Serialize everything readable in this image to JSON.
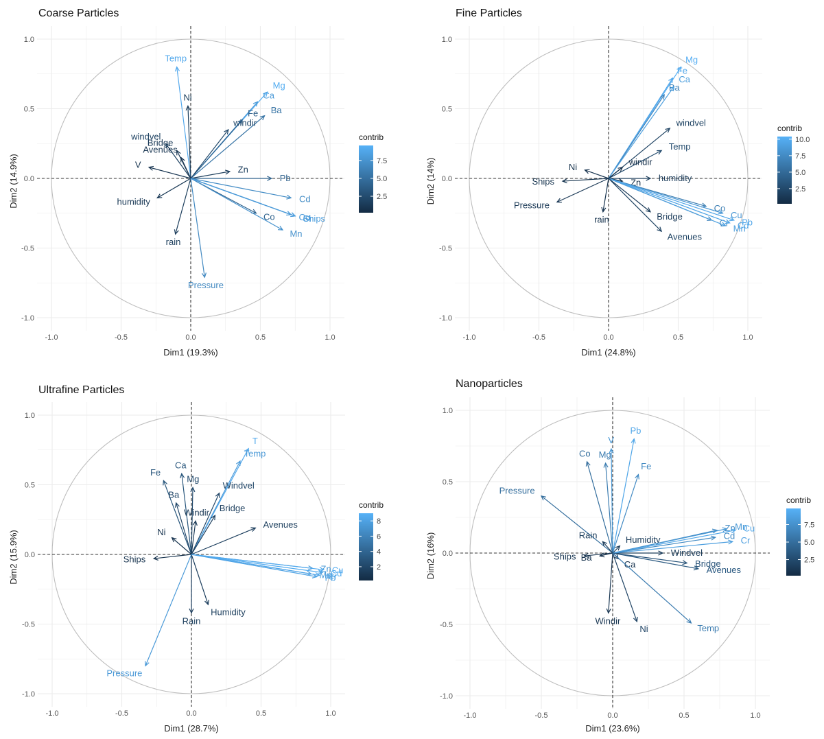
{
  "chart_data": [
    {
      "type": "pca_variable_correlation_circle",
      "title": "Coarse Particles",
      "xlabel": "Dim1 (19.3%)",
      "ylabel": "Dim2 (14.9%)",
      "xlim": [
        -1.0,
        1.0
      ],
      "ylim": [
        -1.0,
        1.0
      ],
      "x_ticks": [
        "-1.0",
        "-0.5",
        "0.0",
        "0.5",
        "1.0"
      ],
      "y_ticks": [
        "-1.0",
        "-0.5",
        "0.0",
        "0.5",
        "1.0"
      ],
      "legend": {
        "title": "contrib",
        "ticks": [
          "2.5",
          "5.0",
          "7.5"
        ],
        "min": 0.2,
        "max": 9.6
      },
      "variables": [
        {
          "name": "Temp",
          "x": -0.1,
          "y": 0.8,
          "contrib": 9.0
        },
        {
          "name": "Ni",
          "x": -0.02,
          "y": 0.52,
          "contrib": 1.5
        },
        {
          "name": "Mg",
          "x": 0.55,
          "y": 0.62,
          "contrib": 9.3
        },
        {
          "name": "Ca",
          "x": 0.48,
          "y": 0.55,
          "contrib": 8.0
        },
        {
          "name": "Fe",
          "x": 0.37,
          "y": 0.42,
          "contrib": 3.8
        },
        {
          "name": "Ba",
          "x": 0.53,
          "y": 0.45,
          "contrib": 5.3
        },
        {
          "name": "windir",
          "x": 0.27,
          "y": 0.35,
          "contrib": 2.3
        },
        {
          "name": "windvel",
          "x": -0.18,
          "y": 0.25,
          "contrib": 1.8
        },
        {
          "name": "Bridge",
          "x": -0.1,
          "y": 0.2,
          "contrib": 1.2
        },
        {
          "name": "Avenues",
          "x": -0.07,
          "y": 0.15,
          "contrib": 1.0
        },
        {
          "name": "Zn",
          "x": 0.28,
          "y": 0.05,
          "contrib": 1.5
        },
        {
          "name": "Pb",
          "x": 0.58,
          "y": 0.0,
          "contrib": 4.0
        },
        {
          "name": "V",
          "x": -0.3,
          "y": 0.08,
          "contrib": 1.0
        },
        {
          "name": "Cd",
          "x": 0.72,
          "y": -0.14,
          "contrib": 7.0
        },
        {
          "name": "Ships",
          "x": 0.75,
          "y": -0.27,
          "contrib": 8.2
        },
        {
          "name": "humidity",
          "x": -0.24,
          "y": -0.14,
          "contrib": 1.2
        },
        {
          "name": "Co",
          "x": 0.47,
          "y": -0.25,
          "contrib": 4.0
        },
        {
          "name": "Cr",
          "x": 0.75,
          "y": -0.27,
          "contrib": 8.3
        },
        {
          "name": "Mn",
          "x": 0.66,
          "y": -0.37,
          "contrib": 7.4
        },
        {
          "name": "Cu",
          "x": 0.72,
          "y": -0.26,
          "contrib": 8.0
        },
        {
          "name": "rain",
          "x": -0.11,
          "y": -0.4,
          "contrib": 1.5
        },
        {
          "name": "Pressure",
          "x": 0.1,
          "y": -0.71,
          "contrib": 6.8
        }
      ]
    },
    {
      "type": "pca_variable_correlation_circle",
      "title": "Fine Particles",
      "xlabel": "Dim1 (24.8%)",
      "ylabel": "Dim2 (14%)",
      "xlim": [
        -1.0,
        1.0
      ],
      "ylim": [
        -1.0,
        1.0
      ],
      "x_ticks": [
        "-1.0",
        "-0.5",
        "0.0",
        "0.5",
        "1.0"
      ],
      "y_ticks": [
        "-1.0",
        "-0.5",
        "0.0",
        "0.5",
        "1.0"
      ],
      "legend": {
        "title": "contrib",
        "ticks": [
          "2.5",
          "5.0",
          "7.5",
          "10.0"
        ],
        "min": 0.2,
        "max": 10.4
      },
      "variables": [
        {
          "name": "Mg",
          "x": 0.52,
          "y": 0.8,
          "contrib": 10.2
        },
        {
          "name": "Fe",
          "x": 0.46,
          "y": 0.72,
          "contrib": 9.6
        },
        {
          "name": "Ba",
          "x": 0.4,
          "y": 0.6,
          "contrib": 7.0
        },
        {
          "name": "Ca",
          "x": 0.47,
          "y": 0.66,
          "contrib": 9.0
        },
        {
          "name": "windvel",
          "x": 0.44,
          "y": 0.36,
          "contrib": 2.0
        },
        {
          "name": "Temp",
          "x": 0.38,
          "y": 0.2,
          "contrib": 2.6
        },
        {
          "name": "Ni",
          "x": -0.17,
          "y": 0.06,
          "contrib": 0.8
        },
        {
          "name": "windir",
          "x": 0.1,
          "y": 0.08,
          "contrib": 0.6
        },
        {
          "name": "humidity",
          "x": 0.3,
          "y": 0.0,
          "contrib": 1.5
        },
        {
          "name": "Ships",
          "x": -0.33,
          "y": -0.02,
          "contrib": 1.0
        },
        {
          "name": "Zn",
          "x": 0.1,
          "y": -0.02,
          "contrib": 0.5
        },
        {
          "name": "Pressure",
          "x": -0.37,
          "y": -0.17,
          "contrib": 1.2
        },
        {
          "name": "Co",
          "x": 0.7,
          "y": -0.2,
          "contrib": 6.5
        },
        {
          "name": "Cu",
          "x": 0.82,
          "y": -0.25,
          "contrib": 8.5
        },
        {
          "name": "Pb",
          "x": 0.9,
          "y": -0.3,
          "contrib": 9.6
        },
        {
          "name": "Cr",
          "x": 0.74,
          "y": -0.3,
          "contrib": 7.0
        },
        {
          "name": "Mn",
          "x": 0.84,
          "y": -0.34,
          "contrib": 9.0
        },
        {
          "name": "Cd",
          "x": 0.87,
          "y": -0.32,
          "contrib": 9.4
        },
        {
          "name": "Bridge",
          "x": 0.3,
          "y": -0.24,
          "contrib": 1.5
        },
        {
          "name": "Avenues",
          "x": 0.38,
          "y": -0.38,
          "contrib": 2.0
        },
        {
          "name": "rain",
          "x": -0.04,
          "y": -0.24,
          "contrib": 0.8
        }
      ]
    },
    {
      "type": "pca_variable_correlation_circle",
      "title": "Ultrafine Particles",
      "xlabel": "Dim1 (28.7%)",
      "ylabel": "Dim2 (15.9%)",
      "xlim": [
        -1.0,
        1.0
      ],
      "ylim": [
        -1.0,
        1.0
      ],
      "x_ticks": [
        "-1.0",
        "-0.5",
        "0.0",
        "0.5",
        "1.0"
      ],
      "y_ticks": [
        "-1.0",
        "-0.5",
        "0.0",
        "0.5",
        "1.0"
      ],
      "legend": {
        "title": "contrib",
        "ticks": [
          "2",
          "4",
          "6",
          "8"
        ],
        "min": 0.2,
        "max": 9.0
      },
      "variables": [
        {
          "name": "T",
          "x": 0.41,
          "y": 0.76,
          "contrib": 8.5
        },
        {
          "name": "Temp",
          "x": 0.35,
          "y": 0.67,
          "contrib": 7.5
        },
        {
          "name": "Ca",
          "x": -0.07,
          "y": 0.58,
          "contrib": 3.0
        },
        {
          "name": "Fe",
          "x": -0.2,
          "y": 0.53,
          "contrib": 3.0
        },
        {
          "name": "Mg",
          "x": 0.01,
          "y": 0.48,
          "contrib": 2.2
        },
        {
          "name": "Windvel",
          "x": 0.2,
          "y": 0.44,
          "contrib": 2.0
        },
        {
          "name": "Ba",
          "x": -0.11,
          "y": 0.37,
          "contrib": 2.0
        },
        {
          "name": "Bridge",
          "x": 0.17,
          "y": 0.28,
          "contrib": 1.5
        },
        {
          "name": "Windir",
          "x": 0.03,
          "y": 0.24,
          "contrib": 1.2
        },
        {
          "name": "Avenues",
          "x": 0.46,
          "y": 0.19,
          "contrib": 1.5
        },
        {
          "name": "Ni",
          "x": -0.14,
          "y": 0.12,
          "contrib": 0.8
        },
        {
          "name": "Ships",
          "x": -0.27,
          "y": -0.03,
          "contrib": 0.8
        },
        {
          "name": "Zn",
          "x": 0.87,
          "y": -0.1,
          "contrib": 7.4
        },
        {
          "name": "Cu",
          "x": 0.95,
          "y": -0.11,
          "contrib": 8.6
        },
        {
          "name": "Cd",
          "x": 0.94,
          "y": -0.13,
          "contrib": 8.6
        },
        {
          "name": "Mn",
          "x": 0.86,
          "y": -0.14,
          "contrib": 7.5
        },
        {
          "name": "Pb",
          "x": 0.9,
          "y": -0.16,
          "contrib": 8.0
        },
        {
          "name": "Cr",
          "x": 0.92,
          "y": -0.15,
          "contrib": 8.3
        },
        {
          "name": "Humidity",
          "x": 0.12,
          "y": -0.36,
          "contrib": 1.5
        },
        {
          "name": "Rain",
          "x": 0.0,
          "y": -0.42,
          "contrib": 1.5
        },
        {
          "name": "Pressure",
          "x": -0.33,
          "y": -0.8,
          "contrib": 7.5
        }
      ]
    },
    {
      "type": "pca_variable_correlation_circle",
      "title": "Nanoparticles",
      "xlabel": "Dim1 (23.6%)",
      "ylabel": "Dim2 (16%)",
      "xlim": [
        -1.0,
        1.0
      ],
      "ylim": [
        -1.0,
        1.0
      ],
      "x_ticks": [
        "-1.0",
        "-0.5",
        "0.0",
        "0.5",
        "1.0"
      ],
      "y_ticks": [
        "-1.0",
        "-0.5",
        "0.0",
        "0.5",
        "1.0"
      ],
      "legend": {
        "title": "contrib",
        "ticks": [
          "2.5",
          "5.0",
          "7.5"
        ],
        "min": 0.2,
        "max": 9.8
      },
      "variables": [
        {
          "name": "Pb",
          "x": 0.15,
          "y": 0.8,
          "contrib": 9.0
        },
        {
          "name": "V",
          "x": -0.01,
          "y": 0.73,
          "contrib": 8.0
        },
        {
          "name": "Mg",
          "x": -0.05,
          "y": 0.63,
          "contrib": 6.0
        },
        {
          "name": "Co",
          "x": -0.18,
          "y": 0.64,
          "contrib": 5.0
        },
        {
          "name": "Fe",
          "x": 0.18,
          "y": 0.55,
          "contrib": 7.0
        },
        {
          "name": "Pressure",
          "x": -0.5,
          "y": 0.4,
          "contrib": 5.0
        },
        {
          "name": "Rain",
          "x": -0.07,
          "y": 0.08,
          "contrib": 1.5
        },
        {
          "name": "Humidity",
          "x": 0.05,
          "y": 0.05,
          "contrib": 1.5
        },
        {
          "name": "Ships",
          "x": -0.2,
          "y": -0.02,
          "contrib": 1.0
        },
        {
          "name": "Ba",
          "x": -0.09,
          "y": -0.02,
          "contrib": 0.8
        },
        {
          "name": "Windvel",
          "x": 0.35,
          "y": 0.0,
          "contrib": 1.5
        },
        {
          "name": "Zn",
          "x": 0.73,
          "y": 0.16,
          "contrib": 7.0
        },
        {
          "name": "Mn",
          "x": 0.8,
          "y": 0.17,
          "contrib": 8.0
        },
        {
          "name": "Cu",
          "x": 0.86,
          "y": 0.16,
          "contrib": 9.0
        },
        {
          "name": "Cd",
          "x": 0.72,
          "y": 0.11,
          "contrib": 7.0
        },
        {
          "name": "Cr",
          "x": 0.84,
          "y": 0.08,
          "contrib": 8.5
        },
        {
          "name": "Bridge",
          "x": 0.52,
          "y": -0.07,
          "contrib": 3.0
        },
        {
          "name": "Avenues",
          "x": 0.6,
          "y": -0.11,
          "contrib": 3.5
        },
        {
          "name": "Ca",
          "x": 0.04,
          "y": -0.04,
          "contrib": 0.8
        },
        {
          "name": "Windir",
          "x": -0.03,
          "y": -0.42,
          "contrib": 1.0
        },
        {
          "name": "Ni",
          "x": 0.17,
          "y": -0.48,
          "contrib": 2.0
        },
        {
          "name": "Temp",
          "x": 0.55,
          "y": -0.49,
          "contrib": 6.0
        }
      ]
    }
  ],
  "colors": {
    "contrib_low": "#132B43",
    "contrib_high": "#56B1F7",
    "grid": "#EBEBEB",
    "circle": "#BDBDBD",
    "axis_dash": "#333333"
  }
}
